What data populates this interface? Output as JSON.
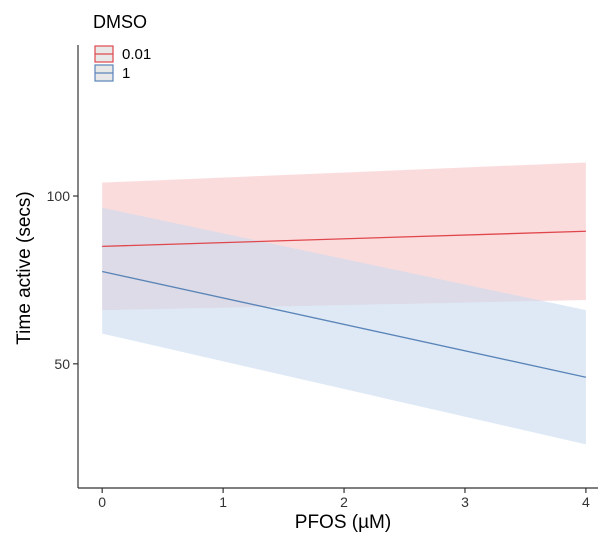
{
  "chart_data": {
    "type": "line",
    "title": "",
    "xlabel": "PFOS (µM)",
    "ylabel": "Time active (secs)",
    "xlim": [
      -0.2,
      4.1
    ],
    "ylim": [
      13,
      145
    ],
    "x_ticks": [
      0,
      1,
      2,
      3,
      4
    ],
    "x_tick_labels": [
      "0",
      "1",
      "2",
      "3",
      "4"
    ],
    "y_ticks": [
      50,
      100
    ],
    "y_tick_labels": [
      "50",
      "100"
    ],
    "grid": false,
    "legend": {
      "title": "DMSO",
      "position": "top-left",
      "entries": [
        "0.01",
        "1"
      ]
    },
    "series": [
      {
        "name": "0.01",
        "color": "#e0474c",
        "band_color": "#f8c5c7",
        "x": [
          0,
          4
        ],
        "y": [
          85,
          89.5
        ],
        "lower": [
          66,
          69
        ],
        "upper": [
          104,
          110
        ]
      },
      {
        "name": "1",
        "color": "#5a84b8",
        "band_color": "#c8dbee",
        "x": [
          0,
          4
        ],
        "y": [
          77.5,
          46
        ],
        "lower": [
          59,
          26
        ],
        "upper": [
          96.5,
          66
        ]
      }
    ]
  }
}
